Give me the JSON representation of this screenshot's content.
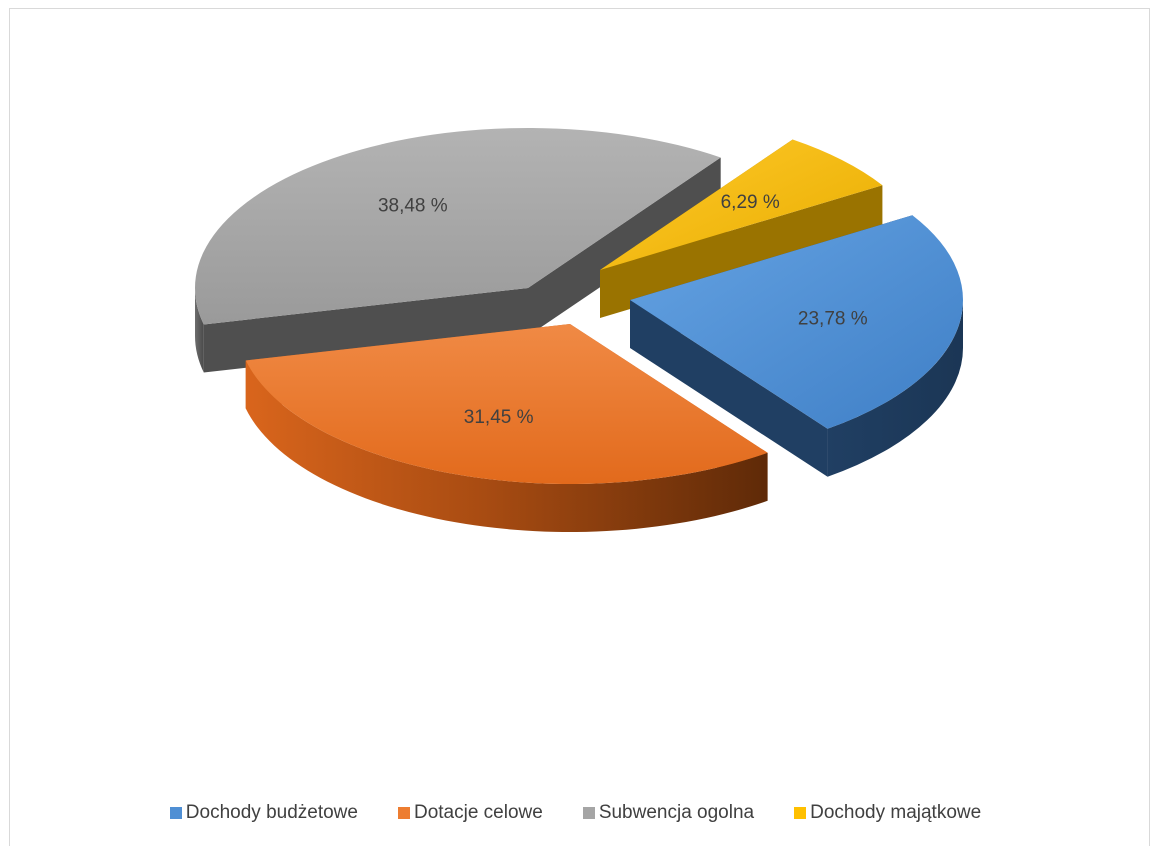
{
  "chart_data": {
    "type": "pie",
    "style": "3d-exploded",
    "categories": [
      "Dochody budżetowe",
      "Dotacje celowe",
      "Subwencja ogolna",
      "Dochody majątkowe"
    ],
    "values": [
      23.78,
      31.45,
      38.48,
      6.29
    ],
    "data_labels": [
      "23,78 %",
      "31,45 %",
      "38,48 %",
      "6,29 %"
    ],
    "colors": [
      "#4f8fd4",
      "#ed7d31",
      "#a5a5a5",
      "#ffc000"
    ],
    "legend_position": "bottom",
    "title": ""
  }
}
